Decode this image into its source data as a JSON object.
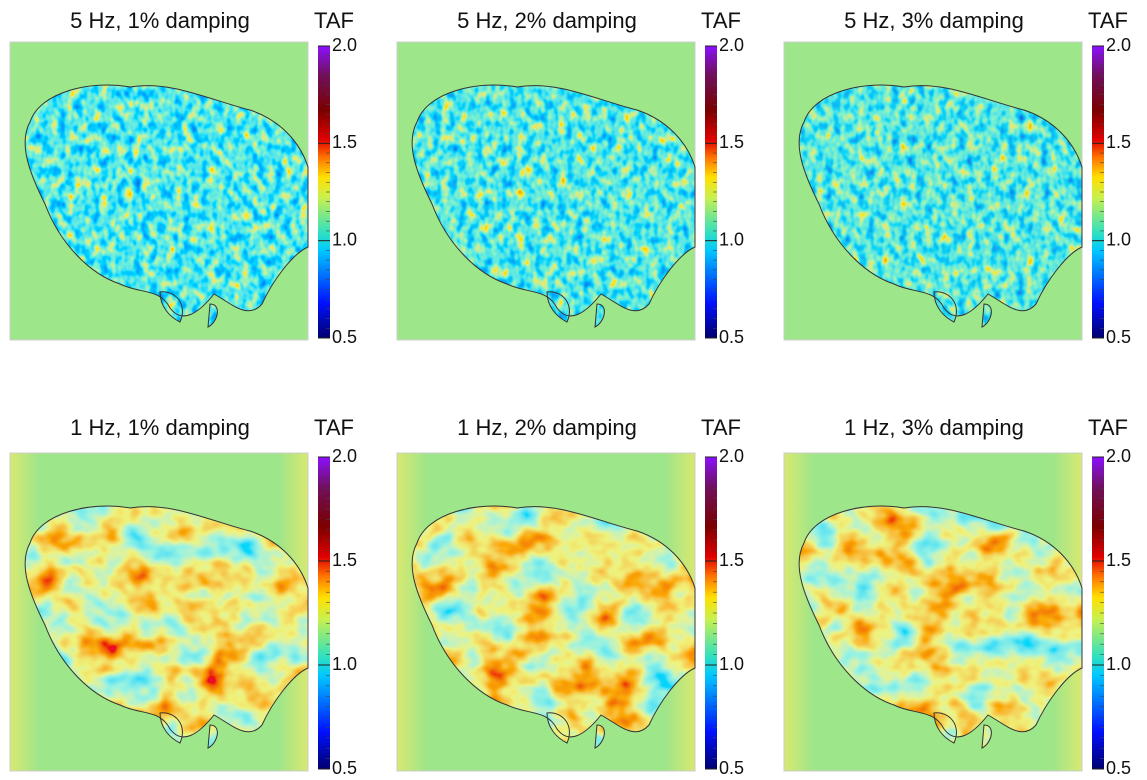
{
  "panels": [
    {
      "title": "5 Hz, 1% damping",
      "colorbar": {
        "label": "TAF",
        "ticks": [
          0.5,
          {
            "value": 1,
            "label": "1.0"
          },
          1.5,
          {
            "value": 2,
            "label": "2.0"
          }
        ]
      }
    },
    {
      "title": "5 Hz, 2% damping",
      "colorbar": {
        "label": "TAF",
        "ticks": [
          0.5,
          {
            "value": 1,
            "label": "1.0"
          },
          1.5,
          {
            "value": 2,
            "label": "2.0"
          }
        ]
      }
    },
    {
      "title": "5 Hz, 3% damping",
      "colorbar": {
        "label": "TAF",
        "ticks": [
          0.5,
          {
            "value": 1,
            "label": "1.0"
          },
          1.5,
          {
            "value": 2,
            "label": "2.0"
          }
        ]
      }
    },
    {
      "title": "1 Hz, 1% damping",
      "colorbar": {
        "label": "TAF",
        "ticks": [
          0.5,
          {
            "value": 1,
            "label": "1.0"
          },
          1.5,
          {
            "value": 2,
            "label": "2.0"
          }
        ]
      }
    },
    {
      "title": "1 Hz, 2% damping",
      "colorbar": {
        "label": "TAF",
        "ticks": [
          0.5,
          {
            "value": 1,
            "label": "1.0"
          },
          1.5,
          {
            "value": 2,
            "label": "2.0"
          }
        ]
      }
    },
    {
      "title": "1 Hz, 3% damping",
      "colorbar": {
        "label": "TAF",
        "ticks": [
          0.5,
          {
            "value": 1,
            "label": "1.0"
          },
          1.5,
          {
            "value": 2,
            "label": "2.0"
          }
        ]
      }
    }
  ]
}
